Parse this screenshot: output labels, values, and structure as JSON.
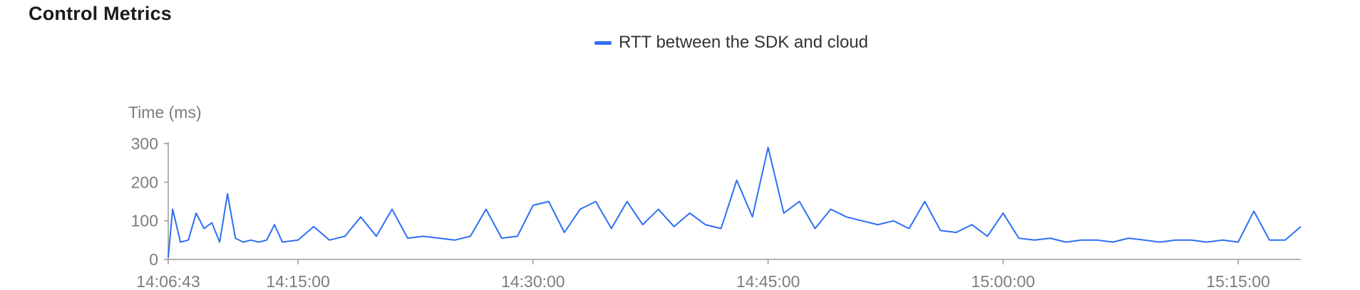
{
  "title": "Control Metrics",
  "colors": {
    "series": "#2d6ff3",
    "axis": "#999999",
    "text": "#7d7d7d"
  },
  "chart_data": {
    "type": "line",
    "title": "Control Metrics",
    "ylabel": "Time (ms)",
    "xlabel": "",
    "ylim": [
      0,
      300
    ],
    "yticks": [
      0,
      100,
      200,
      300
    ],
    "xlim": [
      "14:06:43",
      "15:19:00"
    ],
    "xticks": [
      "14:06:43",
      "14:15:00",
      "14:30:00",
      "14:45:00",
      "15:00:00",
      "15:15:00"
    ],
    "legend": "top-center",
    "grid": false,
    "series": [
      {
        "name": "RTT between the SDK and cloud",
        "x": [
          "14:06:43",
          "14:07:00",
          "14:07:30",
          "14:08:00",
          "14:08:30",
          "14:09:00",
          "14:09:30",
          "14:10:00",
          "14:10:30",
          "14:11:00",
          "14:11:30",
          "14:12:00",
          "14:12:30",
          "14:13:00",
          "14:13:30",
          "14:14:00",
          "14:15:00",
          "14:16:00",
          "14:17:00",
          "14:18:00",
          "14:19:00",
          "14:20:00",
          "14:21:00",
          "14:22:00",
          "14:23:00",
          "14:24:00",
          "14:25:00",
          "14:26:00",
          "14:27:00",
          "14:28:00",
          "14:29:00",
          "14:30:00",
          "14:31:00",
          "14:32:00",
          "14:33:00",
          "14:34:00",
          "14:35:00",
          "14:36:00",
          "14:37:00",
          "14:38:00",
          "14:39:00",
          "14:40:00",
          "14:41:00",
          "14:42:00",
          "14:43:00",
          "14:44:00",
          "14:45:00",
          "14:46:00",
          "14:47:00",
          "14:48:00",
          "14:49:00",
          "14:50:00",
          "14:51:00",
          "14:52:00",
          "14:53:00",
          "14:54:00",
          "14:55:00",
          "14:56:00",
          "14:57:00",
          "14:58:00",
          "14:59:00",
          "15:00:00",
          "15:01:00",
          "15:02:00",
          "15:03:00",
          "15:04:00",
          "15:05:00",
          "15:06:00",
          "15:07:00",
          "15:08:00",
          "15:09:00",
          "15:10:00",
          "15:11:00",
          "15:12:00",
          "15:13:00",
          "15:14:00",
          "15:15:00",
          "15:16:00",
          "15:17:00",
          "15:18:00",
          "15:19:00"
        ],
        "values": [
          5,
          130,
          45,
          50,
          120,
          80,
          95,
          45,
          170,
          55,
          45,
          50,
          45,
          50,
          90,
          45,
          50,
          85,
          50,
          60,
          110,
          60,
          130,
          55,
          60,
          55,
          50,
          60,
          130,
          55,
          60,
          140,
          150,
          70,
          130,
          150,
          80,
          150,
          90,
          130,
          85,
          120,
          90,
          80,
          205,
          110,
          290,
          120,
          150,
          80,
          130,
          110,
          100,
          90,
          100,
          80,
          150,
          75,
          70,
          90,
          60,
          120,
          55,
          50,
          55,
          45,
          50,
          50,
          45,
          55,
          50,
          45,
          50,
          50,
          45,
          50,
          45,
          125,
          50,
          50,
          85
        ]
      }
    ]
  }
}
